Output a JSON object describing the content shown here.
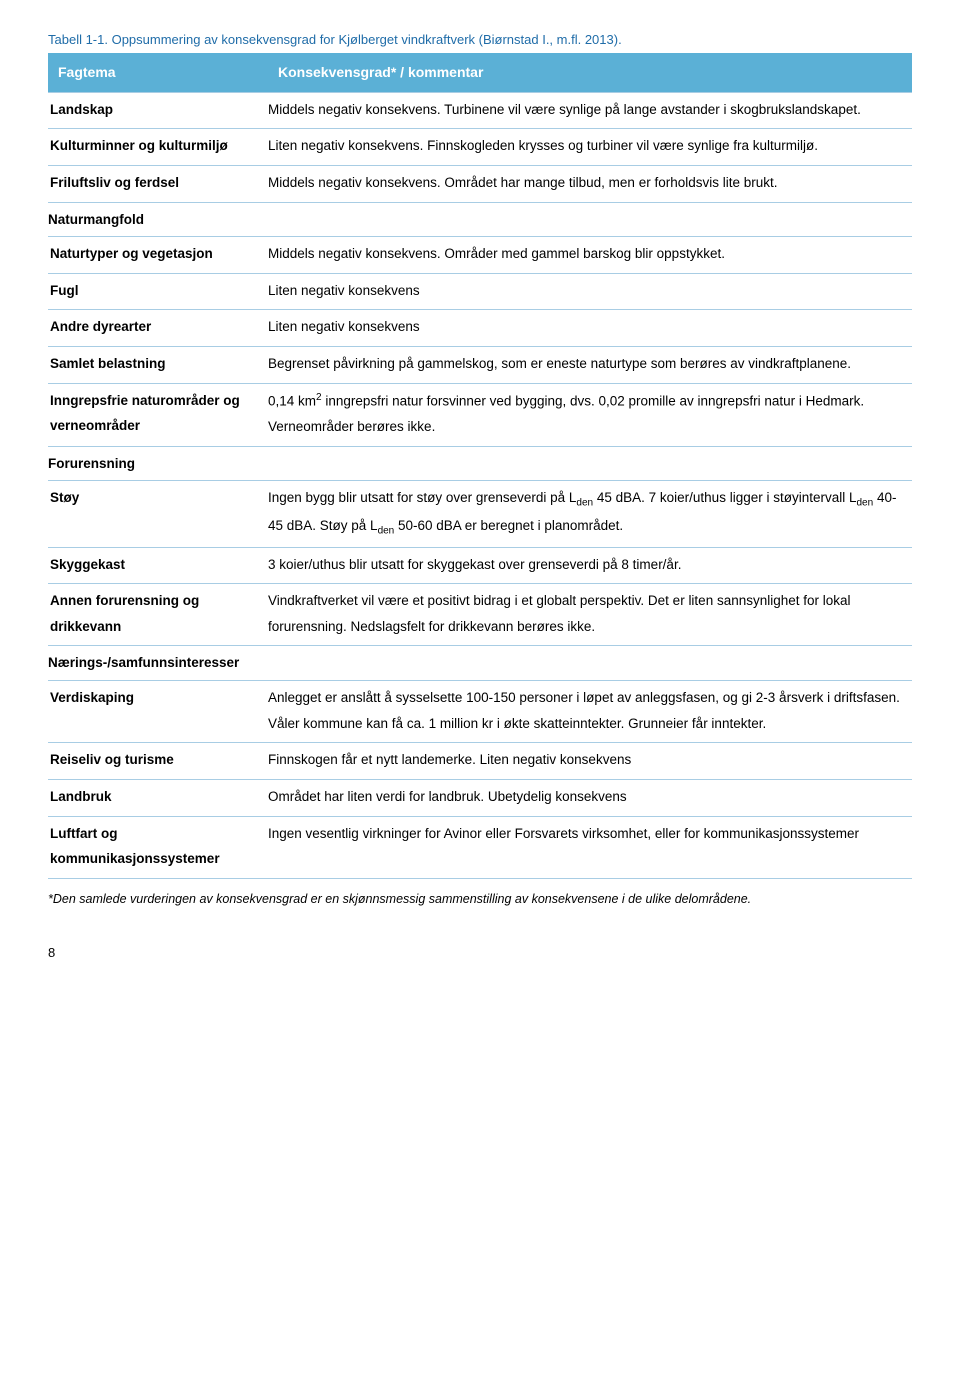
{
  "caption": "Tabell 1-1. Oppsummering av konsekvensgrad for Kjølberget vindkraftverk (Biørnstad I., m.fl. 2013).",
  "header": {
    "col1": "Fagtema",
    "col2": "Konsekvensgrad* / kommentar"
  },
  "header_bg": "#5bb0d6",
  "border_color": "#a8cde4",
  "caption_color": "#1f6ca8",
  "rows": {
    "landskap": {
      "label": "Landskap",
      "text": "Middels negativ konsekvens. Turbinene vil være synlige på lange avstander i skogbrukslandskapet."
    },
    "kulturminner": {
      "label": "Kulturminner og kulturmiljø",
      "text": "Liten negativ konsekvens. Finnskogleden krysses og turbiner vil være synlige fra kulturmiljø."
    },
    "friluftsliv": {
      "label": "Friluftsliv og ferdsel",
      "text": "Middels negativ konsekvens. Området har mange tilbud, men er forholdsvis lite brukt."
    },
    "naturmangfold": {
      "label": "Naturmangfold"
    },
    "naturtyper": {
      "label": "Naturtyper og vegetasjon",
      "text": "Middels negativ konsekvens. Områder med gammel barskog blir oppstykket."
    },
    "fugl": {
      "label": "Fugl",
      "text": "Liten negativ konsekvens"
    },
    "andre": {
      "label": "Andre dyrearter",
      "text": "Liten negativ konsekvens"
    },
    "samlet": {
      "label": "Samlet belastning",
      "text": "Begrenset påvirkning på gammelskog, som er eneste naturtype som berøres av vindkraftplanene."
    },
    "inngrepsfrie": {
      "label": "Inngrepsfrie naturområder og verneområder",
      "text_pre": "0,14 km",
      "sup": "2",
      "text_post": " inngrepsfri natur forsvinner ved bygging, dvs. 0,02 promille av inngrepsfri natur i Hedmark. Verneområder berøres ikke."
    },
    "forurensning": {
      "label": "Forurensning"
    },
    "stoy": {
      "label": "Støy",
      "text_a": "Ingen bygg blir utsatt for støy over grenseverdi på L",
      "sub1": "den",
      "text_b": " 45 dBA. 7 koier/uthus ligger i støyintervall L",
      "sub2": "den",
      "text_c": " 40-45 dBA. Støy på L",
      "sub3": "den",
      "text_d": " 50-60 dBA er beregnet i planområdet."
    },
    "skyggekast": {
      "label": "Skyggekast",
      "text": "3 koier/uthus blir utsatt for skyggekast over grenseverdi på 8 timer/år."
    },
    "annen": {
      "label": "Annen forurensning og drikkevann",
      "text": "Vindkraftverket vil være et positivt bidrag i et globalt perspektiv. Det er liten sannsynlighet for lokal forurensning. Nedslagsfelt for drikkevann berøres ikke."
    },
    "naerings": {
      "label": "Nærings-/samfunnsinteresser"
    },
    "verdiskaping": {
      "label": "Verdiskaping",
      "text": "Anlegget er anslått å sysselsette 100-150 personer i løpet av anleggsfasen, og gi 2-3 årsverk i driftsfasen. Våler kommune kan få ca. 1 million kr i økte skatteinntekter. Grunneier får inntekter."
    },
    "reiseliv": {
      "label": "Reiseliv og turisme",
      "text": "Finnskogen får et nytt landemerke. Liten negativ konsekvens"
    },
    "landbruk": {
      "label": "Landbruk",
      "text": "Området har liten verdi for landbruk. Ubetydelig konsekvens"
    },
    "luftfart": {
      "label": "Luftfart og kommunikasjonssystemer",
      "text": "Ingen vesentlig virkninger for Avinor eller Forsvarets virksomhet, eller for kommunikasjonssystemer"
    }
  },
  "footnote": "*Den samlede vurderingen av konsekvensgrad er en skjønnsmessig sammenstilling av konsekvensene i de ulike delområdene.",
  "page_number": "8"
}
